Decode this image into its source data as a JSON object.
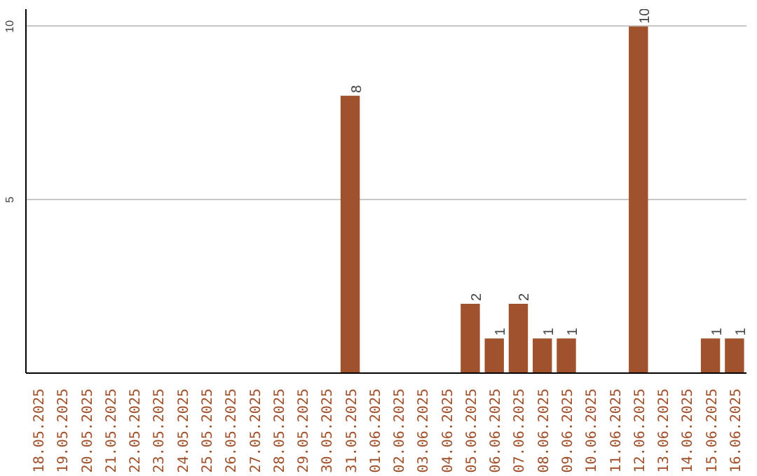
{
  "chart_data": {
    "type": "bar",
    "categories": [
      "18.05.2025",
      "19.05.2025",
      "20.05.2025",
      "21.05.2025",
      "22.05.2025",
      "23.05.2025",
      "24.05.2025",
      "25.05.2025",
      "26.05.2025",
      "27.05.2025",
      "28.05.2025",
      "29.05.2025",
      "30.05.2025",
      "31.05.2025",
      "01.06.2025",
      "02.06.2025",
      "03.06.2025",
      "04.06.2025",
      "05.06.2025",
      "06.06.2025",
      "07.06.2025",
      "08.06.2025",
      "09.06.2025",
      "10.06.2025",
      "11.06.2025",
      "12.06.2025",
      "13.06.2025",
      "14.06.2025",
      "15.06.2025",
      "16.06.2025"
    ],
    "values": [
      0,
      0,
      0,
      0,
      0,
      0,
      0,
      0,
      0,
      0,
      0,
      0,
      0,
      8,
      0,
      0,
      0,
      0,
      2,
      1,
      2,
      1,
      1,
      0,
      0,
      10,
      0,
      0,
      1,
      1
    ],
    "value_labels": [
      null,
      null,
      null,
      null,
      null,
      null,
      null,
      null,
      null,
      null,
      null,
      null,
      null,
      "8",
      null,
      null,
      null,
      null,
      "2",
      "1",
      "2",
      "1",
      "1",
      null,
      null,
      "10",
      null,
      null,
      "1",
      "1"
    ],
    "color": "#a0522d",
    "ylim": [
      0,
      10.5
    ],
    "yticks": [
      5,
      10
    ],
    "grid": "y"
  }
}
